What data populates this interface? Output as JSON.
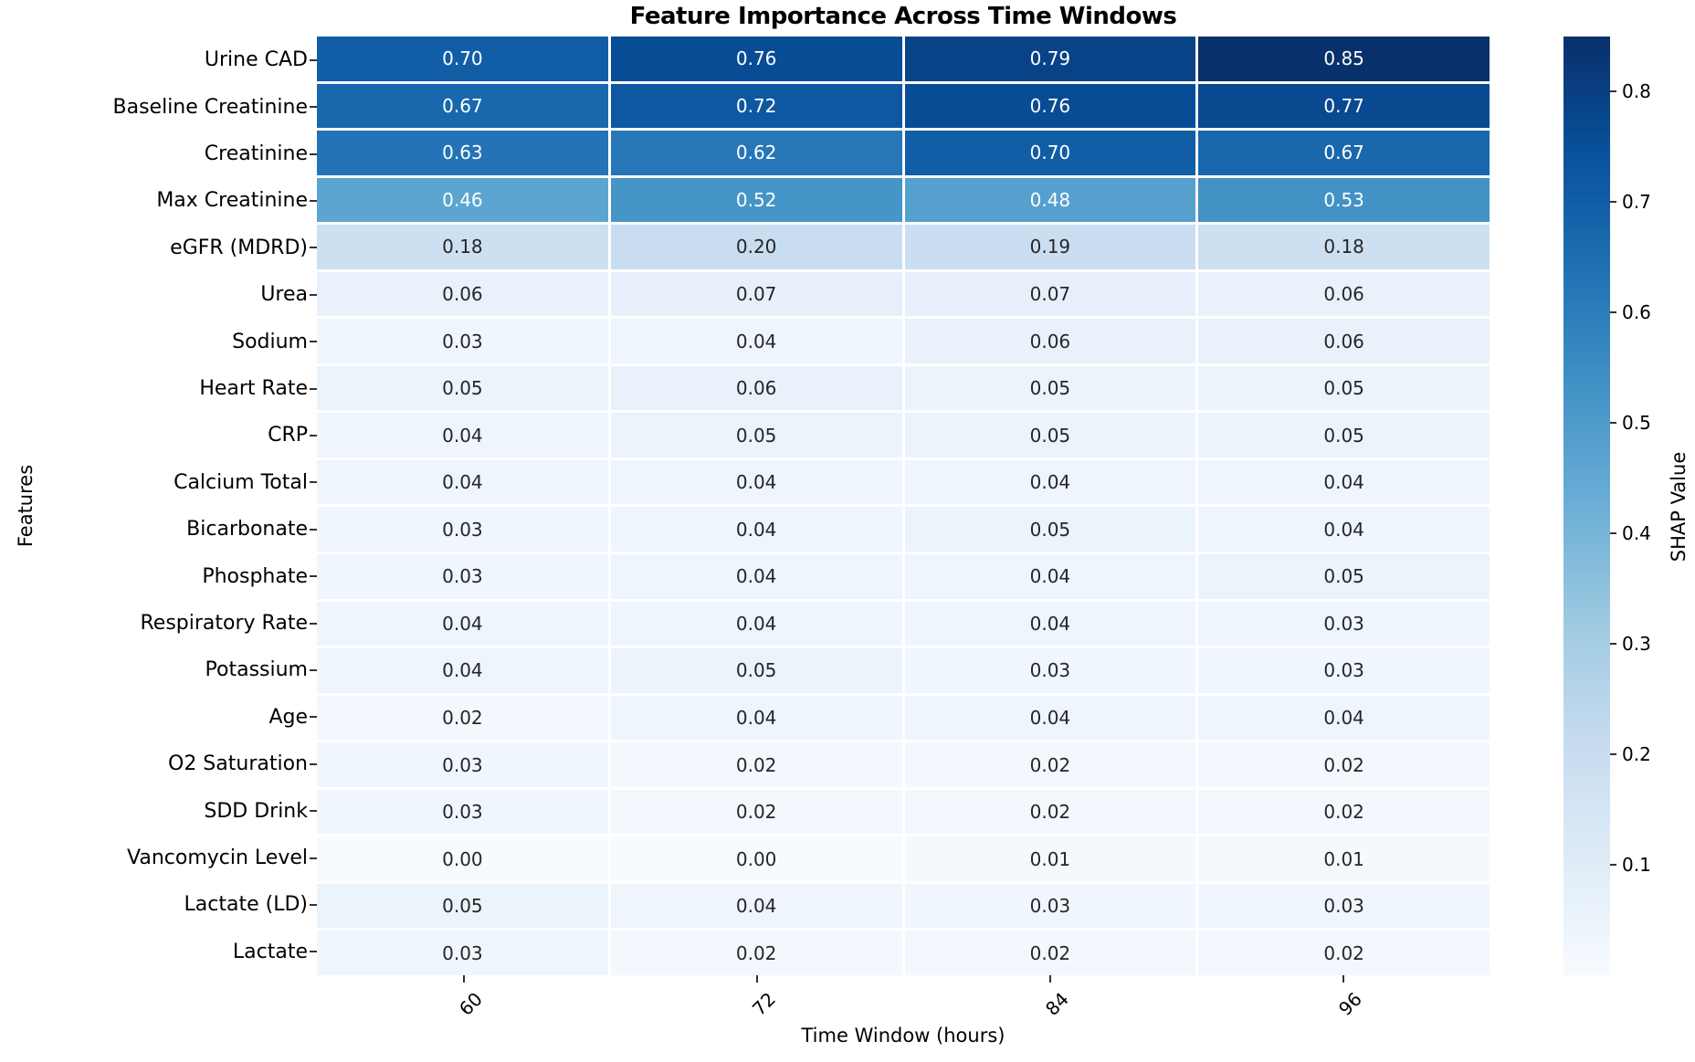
{
  "chart_data": {
    "type": "heatmap",
    "title": "Feature Importance Across Time Windows",
    "xlabel": "Time Window (hours)",
    "ylabel": "Features",
    "x_categories": [
      "60",
      "72",
      "84",
      "96"
    ],
    "y_categories": [
      "Urine CAD",
      "Baseline Creatinine",
      "Creatinine",
      "Max Creatinine",
      "eGFR (MDRD)",
      "Urea",
      "Sodium",
      "Heart Rate",
      "CRP",
      "Calcium Total",
      "Bicarbonate",
      "Phosphate",
      "Respiratory Rate",
      "Potassium",
      "Age",
      "O2 Saturation",
      "SDD Drink",
      "Vancomycin Level",
      "Lactate (LD)",
      "Lactate"
    ],
    "values": [
      [
        0.7,
        0.76,
        0.79,
        0.85
      ],
      [
        0.67,
        0.72,
        0.76,
        0.77
      ],
      [
        0.63,
        0.62,
        0.7,
        0.67
      ],
      [
        0.46,
        0.52,
        0.48,
        0.53
      ],
      [
        0.18,
        0.2,
        0.19,
        0.18
      ],
      [
        0.06,
        0.07,
        0.07,
        0.06
      ],
      [
        0.03,
        0.04,
        0.06,
        0.06
      ],
      [
        0.05,
        0.06,
        0.05,
        0.05
      ],
      [
        0.04,
        0.05,
        0.05,
        0.05
      ],
      [
        0.04,
        0.04,
        0.04,
        0.04
      ],
      [
        0.03,
        0.04,
        0.05,
        0.04
      ],
      [
        0.03,
        0.04,
        0.04,
        0.05
      ],
      [
        0.04,
        0.04,
        0.04,
        0.03
      ],
      [
        0.04,
        0.05,
        0.03,
        0.03
      ],
      [
        0.02,
        0.04,
        0.04,
        0.04
      ],
      [
        0.03,
        0.02,
        0.02,
        0.02
      ],
      [
        0.03,
        0.02,
        0.02,
        0.02
      ],
      [
        0.0,
        0.0,
        0.01,
        0.01
      ],
      [
        0.05,
        0.04,
        0.03,
        0.03
      ],
      [
        0.03,
        0.02,
        0.02,
        0.02
      ]
    ],
    "annotation_decimals": 2,
    "grid": false,
    "colorbar": {
      "label": "SHAP Value",
      "ticks": [
        0.8,
        0.7,
        0.6,
        0.5,
        0.4,
        0.3,
        0.2,
        0.1
      ],
      "vmin": 0.0,
      "vmax": 0.85,
      "position": "right"
    },
    "colormap": {
      "name": "Blues",
      "anchors": [
        "#f7fbff",
        "#deebf7",
        "#c6dbef",
        "#9ecae1",
        "#6baed6",
        "#4292c6",
        "#2171b5",
        "#08519c",
        "#08306b"
      ]
    },
    "annotation_colors": {
      "on_dark": "#ffffff",
      "on_light": "#262626"
    }
  }
}
